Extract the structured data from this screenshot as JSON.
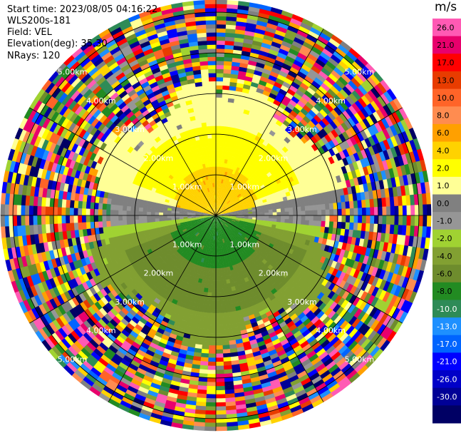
{
  "header": {
    "start_time": "Start time: 2023/08/05 04:16:22",
    "site": "WLS200s-181",
    "field": "Field: VEL",
    "elevation": "Elevation(deg): 35.30",
    "nrays": "NRays: 120"
  },
  "colorbar": {
    "unit": "m/s",
    "ticks": [
      "26.0",
      "21.0",
      "17.0",
      "13.0",
      "10.0",
      "8.0",
      "6.0",
      "4.0",
      "2.0",
      "1.0",
      "0.0",
      "-1.0",
      "-2.0",
      "-4.0",
      "-6.0",
      "-8.0",
      "-10.0",
      "-13.0",
      "-17.0",
      "-21.0",
      "-26.0",
      "-30.0"
    ],
    "colors": [
      "#ff5ab4",
      "#e8006c",
      "#ff0000",
      "#e83c00",
      "#ff6428",
      "#ff8c50",
      "#ffa000",
      "#ffd200",
      "#ffff00",
      "#ffff96",
      "#808080",
      "#969696",
      "#a0d232",
      "#82a032",
      "#6e8c2d",
      "#228b22",
      "#2e8b57",
      "#1e90ff",
      "#0064ff",
      "#0000ff",
      "#0000c8",
      "#000096",
      "#000064"
    ]
  },
  "chart_data": {
    "type": "ppi",
    "title": "",
    "range_unit": "km",
    "ring_labels": [
      "1.00km",
      "2.00km",
      "3.00km",
      "4.00km",
      "5.00km"
    ],
    "max_range_km": 5.3,
    "n_rays": 120,
    "spokes_deg": [
      0,
      30,
      60,
      90,
      120,
      150,
      180,
      210,
      240,
      270,
      300,
      330
    ],
    "velocity_pattern": [
      {
        "sector": "north (approx 270-360-90 deg)",
        "range_km": [
          0,
          1.0
        ],
        "value_ms": 6.0
      },
      {
        "sector": "north",
        "range_km": [
          1.0,
          2.2
        ],
        "value_ms": 4.0
      },
      {
        "sector": "north",
        "range_km": [
          2.2,
          3.2
        ],
        "value_ms": 2.0
      },
      {
        "sector": "east-west band",
        "range_km": [
          0,
          3.0
        ],
        "value_ms": 0.0
      },
      {
        "sector": "south",
        "range_km": [
          0,
          1.2
        ],
        "value_ms": -6.0
      },
      {
        "sector": "south",
        "range_km": [
          1.2,
          2.4
        ],
        "value_ms": -4.0
      },
      {
        "sector": "south",
        "range_km": [
          2.4,
          3.2
        ],
        "value_ms": -2.0
      },
      {
        "sector": "all",
        "range_km": [
          3.2,
          5.3
        ],
        "value_ms": "noise"
      }
    ]
  }
}
